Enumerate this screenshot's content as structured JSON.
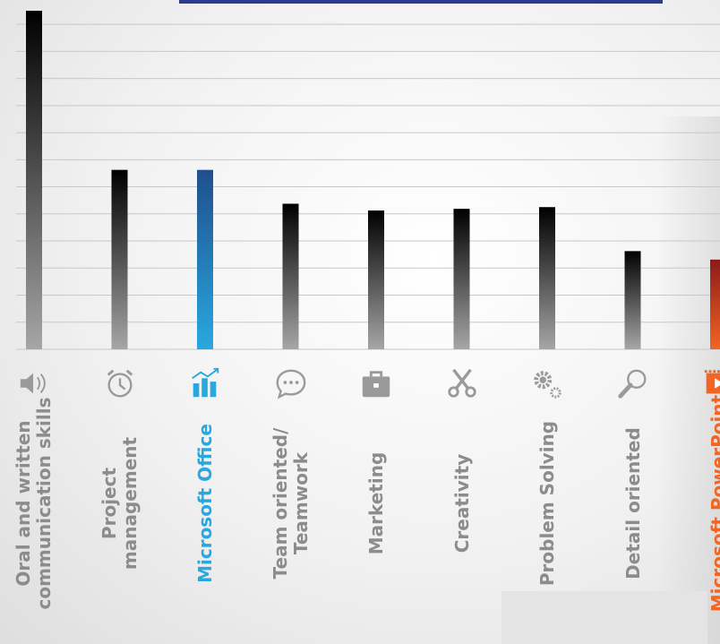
{
  "chart_data": {
    "type": "bar",
    "categories": [
      "Oral and written\ncommunication skills",
      "Project\nmanagement",
      "Microsoft Office",
      "Team oriented/\nTeamwork",
      "Marketing",
      "Creativity",
      "Problem Solving",
      "Detail oriented",
      "Microsoft PowerPoint"
    ],
    "values": [
      100,
      53,
      53,
      43,
      41,
      41.5,
      42,
      29,
      26.5
    ],
    "ylim": [
      0,
      100
    ],
    "grid": true,
    "highlight": {
      "Microsoft Office": {
        "bar_top": "#1f4f8c",
        "bar_bottom": "#29a8e0",
        "label_color": "#29a8e0"
      },
      "Microsoft PowerPoint": {
        "bar_top": "#8c1a1a",
        "bar_bottom": "#f26522",
        "label_color": "#f26522"
      }
    },
    "default_colors": {
      "bar_top": "#000000",
      "bar_bottom": "#a6a6a6",
      "label_color": "#8c8c8c"
    }
  },
  "icons": [
    "speaker-icon",
    "alarm-clock-icon",
    "bar-chart-icon",
    "speech-bubble-icon",
    "briefcase-icon",
    "scissors-icon",
    "gears-icon",
    "magnifier-icon",
    "presentation-icon"
  ]
}
